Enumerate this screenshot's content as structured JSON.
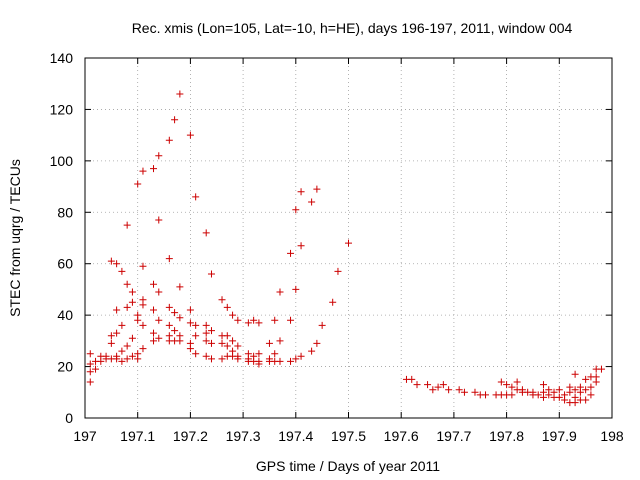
{
  "chart_data": {
    "type": "scatter",
    "title": "Rec. xmis (Lon=105, Lat=-10, h=HE), days 196-197, 2011, window 004",
    "xlabel": "GPS time / Days of year 2011",
    "ylabel": "STEC from uqrg / TECUs",
    "xlim": [
      197,
      198
    ],
    "ylim": [
      0,
      140
    ],
    "x_ticks": [
      197,
      197.1,
      197.2,
      197.3,
      197.4,
      197.5,
      197.6,
      197.7,
      197.8,
      197.9,
      198
    ],
    "x_tick_labels": [
      "197",
      "197.1",
      "197.2",
      "197.3",
      "197.4",
      "197.5",
      "197.6",
      "197.7",
      "197.8",
      "197.9",
      "198"
    ],
    "y_ticks": [
      0,
      20,
      40,
      60,
      80,
      100,
      120,
      140
    ],
    "y_tick_labels": [
      "0",
      "20",
      "40",
      "60",
      "80",
      "100",
      "120",
      "140"
    ],
    "grid": true,
    "marker": "plus",
    "colors": {
      "points": "#cc0000",
      "grid": "#a0a0a0",
      "axes": "#000000"
    },
    "series": [
      {
        "points": [
          [
            197.01,
            25
          ],
          [
            197.01,
            21
          ],
          [
            197.01,
            18
          ],
          [
            197.01,
            14
          ],
          [
            197.02,
            22
          ],
          [
            197.02,
            19
          ],
          [
            197.03,
            24
          ],
          [
            197.03,
            22
          ],
          [
            197.04,
            24
          ],
          [
            197.04,
            23
          ],
          [
            197.05,
            61
          ],
          [
            197.05,
            32
          ],
          [
            197.05,
            29
          ],
          [
            197.05,
            23
          ],
          [
            197.06,
            60
          ],
          [
            197.06,
            42
          ],
          [
            197.06,
            33
          ],
          [
            197.06,
            24
          ],
          [
            197.06,
            23
          ],
          [
            197.07,
            57
          ],
          [
            197.07,
            36
          ],
          [
            197.07,
            26
          ],
          [
            197.07,
            22
          ],
          [
            197.08,
            75
          ],
          [
            197.08,
            52
          ],
          [
            197.08,
            43
          ],
          [
            197.08,
            28
          ],
          [
            197.08,
            23
          ],
          [
            197.09,
            49
          ],
          [
            197.09,
            45
          ],
          [
            197.09,
            31
          ],
          [
            197.09,
            24
          ],
          [
            197.1,
            91
          ],
          [
            197.1,
            40
          ],
          [
            197.1,
            38
          ],
          [
            197.1,
            25
          ],
          [
            197.1,
            23
          ],
          [
            197.11,
            96
          ],
          [
            197.11,
            59
          ],
          [
            197.11,
            46
          ],
          [
            197.11,
            44
          ],
          [
            197.11,
            36
          ],
          [
            197.11,
            27
          ],
          [
            197.13,
            97
          ],
          [
            197.13,
            52
          ],
          [
            197.13,
            42
          ],
          [
            197.13,
            33
          ],
          [
            197.13,
            30
          ],
          [
            197.14,
            102
          ],
          [
            197.14,
            77
          ],
          [
            197.14,
            49
          ],
          [
            197.14,
            38
          ],
          [
            197.14,
            31
          ],
          [
            197.16,
            108
          ],
          [
            197.16,
            62
          ],
          [
            197.16,
            43
          ],
          [
            197.16,
            36
          ],
          [
            197.16,
            32
          ],
          [
            197.16,
            30
          ],
          [
            197.17,
            116
          ],
          [
            197.17,
            41
          ],
          [
            197.17,
            34
          ],
          [
            197.17,
            30
          ],
          [
            197.18,
            126
          ],
          [
            197.18,
            51
          ],
          [
            197.18,
            39
          ],
          [
            197.18,
            32
          ],
          [
            197.18,
            30
          ],
          [
            197.2,
            110
          ],
          [
            197.2,
            42
          ],
          [
            197.2,
            37
          ],
          [
            197.2,
            29
          ],
          [
            197.2,
            27
          ],
          [
            197.21,
            86
          ],
          [
            197.21,
            36
          ],
          [
            197.21,
            32
          ],
          [
            197.21,
            25
          ],
          [
            197.23,
            72
          ],
          [
            197.23,
            36
          ],
          [
            197.23,
            33
          ],
          [
            197.23,
            30
          ],
          [
            197.23,
            24
          ],
          [
            197.24,
            56
          ],
          [
            197.24,
            34
          ],
          [
            197.24,
            29
          ],
          [
            197.24,
            23
          ],
          [
            197.26,
            46
          ],
          [
            197.26,
            32
          ],
          [
            197.26,
            29
          ],
          [
            197.26,
            23
          ],
          [
            197.27,
            43
          ],
          [
            197.27,
            32
          ],
          [
            197.27,
            28
          ],
          [
            197.27,
            24
          ],
          [
            197.28,
            40
          ],
          [
            197.28,
            30
          ],
          [
            197.28,
            26
          ],
          [
            197.28,
            24
          ],
          [
            197.29,
            38
          ],
          [
            197.29,
            28
          ],
          [
            197.29,
            24
          ],
          [
            197.29,
            23
          ],
          [
            197.31,
            37
          ],
          [
            197.31,
            25
          ],
          [
            197.31,
            23
          ],
          [
            197.31,
            22
          ],
          [
            197.32,
            38
          ],
          [
            197.32,
            24
          ],
          [
            197.32,
            22
          ],
          [
            197.33,
            37
          ],
          [
            197.33,
            25
          ],
          [
            197.33,
            22
          ],
          [
            197.33,
            21
          ],
          [
            197.35,
            29
          ],
          [
            197.35,
            23
          ],
          [
            197.35,
            22
          ],
          [
            197.36,
            38
          ],
          [
            197.36,
            25
          ],
          [
            197.36,
            22
          ],
          [
            197.37,
            49
          ],
          [
            197.37,
            30
          ],
          [
            197.37,
            22
          ],
          [
            197.39,
            64
          ],
          [
            197.39,
            38
          ],
          [
            197.39,
            22
          ],
          [
            197.4,
            81
          ],
          [
            197.4,
            50
          ],
          [
            197.4,
            23
          ],
          [
            197.41,
            88
          ],
          [
            197.41,
            67
          ],
          [
            197.41,
            24
          ],
          [
            197.43,
            84
          ],
          [
            197.43,
            26
          ],
          [
            197.44,
            89
          ],
          [
            197.44,
            29
          ],
          [
            197.45,
            36
          ],
          [
            197.47,
            45
          ],
          [
            197.48,
            57
          ],
          [
            197.5,
            68
          ],
          [
            197.61,
            15
          ],
          [
            197.62,
            15
          ],
          [
            197.63,
            13
          ],
          [
            197.65,
            13
          ],
          [
            197.66,
            11
          ],
          [
            197.67,
            12
          ],
          [
            197.68,
            13
          ],
          [
            197.69,
            11
          ],
          [
            197.71,
            11
          ],
          [
            197.72,
            10
          ],
          [
            197.74,
            10
          ],
          [
            197.75,
            9
          ],
          [
            197.76,
            9
          ],
          [
            197.78,
            9
          ],
          [
            197.79,
            14
          ],
          [
            197.79,
            9
          ],
          [
            197.8,
            13
          ],
          [
            197.8,
            9
          ],
          [
            197.81,
            12
          ],
          [
            197.81,
            9
          ],
          [
            197.82,
            11
          ],
          [
            197.82,
            14
          ],
          [
            197.83,
            11
          ],
          [
            197.83,
            10
          ],
          [
            197.84,
            10
          ],
          [
            197.85,
            10
          ],
          [
            197.85,
            9
          ],
          [
            197.86,
            9
          ],
          [
            197.87,
            13
          ],
          [
            197.87,
            10
          ],
          [
            197.87,
            8
          ],
          [
            197.88,
            11
          ],
          [
            197.88,
            9
          ],
          [
            197.89,
            10
          ],
          [
            197.89,
            8
          ],
          [
            197.9,
            11
          ],
          [
            197.9,
            8
          ],
          [
            197.91,
            9
          ],
          [
            197.91,
            7
          ],
          [
            197.92,
            12
          ],
          [
            197.92,
            10
          ],
          [
            197.92,
            6
          ],
          [
            197.93,
            17
          ],
          [
            197.93,
            11
          ],
          [
            197.93,
            8
          ],
          [
            197.93,
            6
          ],
          [
            197.94,
            12
          ],
          [
            197.94,
            10
          ],
          [
            197.94,
            7
          ],
          [
            197.95,
            15
          ],
          [
            197.95,
            11
          ],
          [
            197.95,
            7
          ],
          [
            197.96,
            16
          ],
          [
            197.96,
            12
          ],
          [
            197.96,
            9
          ],
          [
            197.97,
            19
          ],
          [
            197.97,
            16
          ],
          [
            197.97,
            14
          ],
          [
            197.98,
            19
          ]
        ]
      }
    ]
  }
}
